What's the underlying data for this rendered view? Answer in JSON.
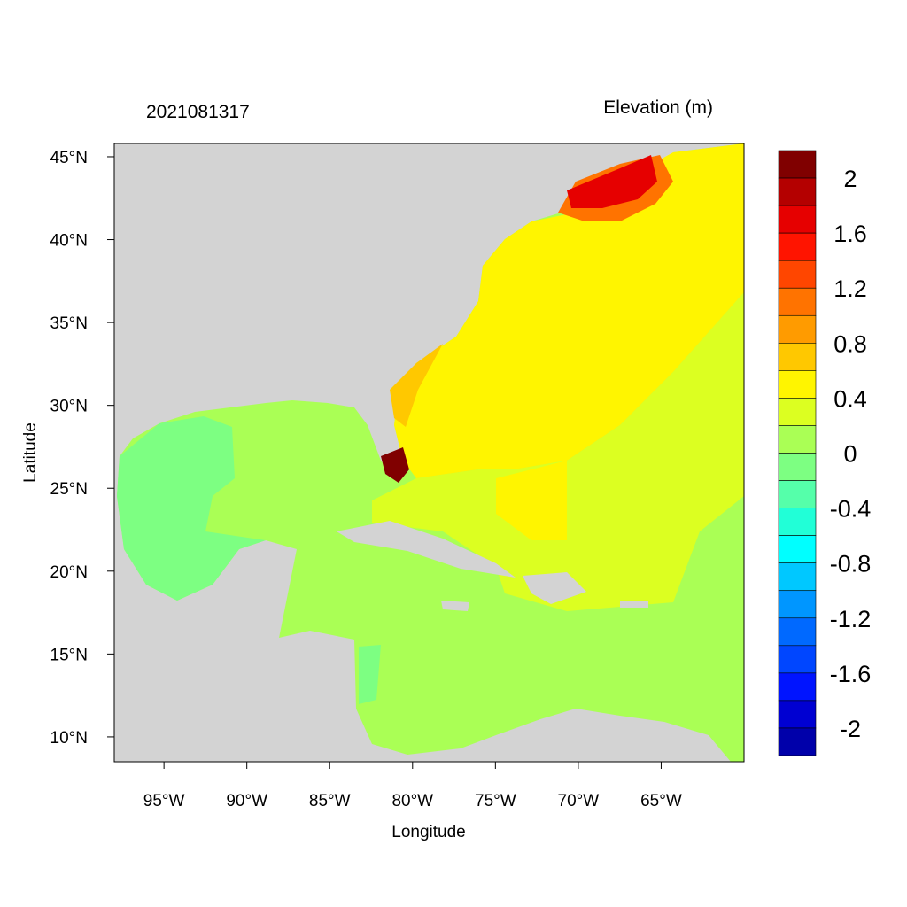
{
  "title_left": "2021081317",
  "title_right": "Elevation (m)",
  "xlabel": "Longitude",
  "ylabel": "Latitude",
  "x_ticks": [
    {
      "lon": -95,
      "label": "95°W"
    },
    {
      "lon": -90,
      "label": "90°W"
    },
    {
      "lon": -85,
      "label": "85°W"
    },
    {
      "lon": -80,
      "label": "80°W"
    },
    {
      "lon": -75,
      "label": "75°W"
    },
    {
      "lon": -70,
      "label": "70°W"
    },
    {
      "lon": -65,
      "label": "65°W"
    }
  ],
  "y_ticks": [
    {
      "lat": 45,
      "label": "45°N"
    },
    {
      "lat": 40,
      "label": "40°N"
    },
    {
      "lat": 35,
      "label": "35°N"
    },
    {
      "lat": 30,
      "label": "30°N"
    },
    {
      "lat": 25,
      "label": "25°N"
    },
    {
      "lat": 20,
      "label": "20°N"
    },
    {
      "lat": 15,
      "label": "15°N"
    },
    {
      "lat": 10,
      "label": "10°N"
    }
  ],
  "extent": {
    "lon": [
      -98,
      -60
    ],
    "lat": [
      8.5,
      45.8
    ]
  },
  "land_color": "#D3D3D3",
  "colorbar": {
    "colors": [
      "#800000",
      "#B40000",
      "#E60000",
      "#FF1400",
      "#FF4600",
      "#FF7300",
      "#FF9B00",
      "#FFC800",
      "#FFF500",
      "#DCFF21",
      "#AAFF55",
      "#7DFF82",
      "#55FFAA",
      "#21FFD7",
      "#00FFFF",
      "#00C8FF",
      "#0096FF",
      "#0069FF",
      "#0046FF",
      "#0014FF",
      "#0000D2",
      "#0000AA"
    ],
    "labels": [
      "2",
      "1.6",
      "1.2",
      "0.8",
      "0.4",
      "0",
      "-0.4",
      "-0.8",
      "-1.2",
      "-1.6",
      "-2"
    ]
  }
}
